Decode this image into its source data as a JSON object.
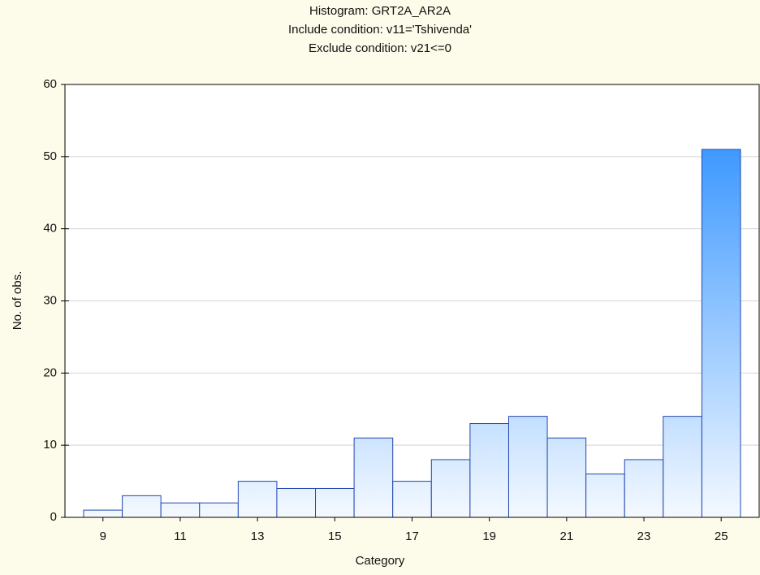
{
  "chart_data": {
    "type": "bar",
    "title": "Histogram: GRT2A_AR2A",
    "subtitle": [
      "Include condition: v11='Tshivenda'",
      "Exclude condition: v21<=0"
    ],
    "x_label": "Category",
    "y_label": "No. of obs.",
    "categories": [
      "9",
      null,
      "11",
      null,
      "13",
      null,
      "15",
      null,
      "17",
      null,
      "19",
      null,
      "21",
      null,
      "23",
      null,
      "25"
    ],
    "values": [
      1,
      3,
      2,
      2,
      5,
      4,
      4,
      11,
      5,
      8,
      13,
      14,
      11,
      6,
      8,
      14,
      51
    ],
    "color": "#1e88ff",
    "edge_color": "#2346b0",
    "ylim": [
      0,
      60
    ],
    "yticks": [
      0,
      10,
      20,
      30,
      40,
      50,
      60
    ],
    "grid": true
  }
}
